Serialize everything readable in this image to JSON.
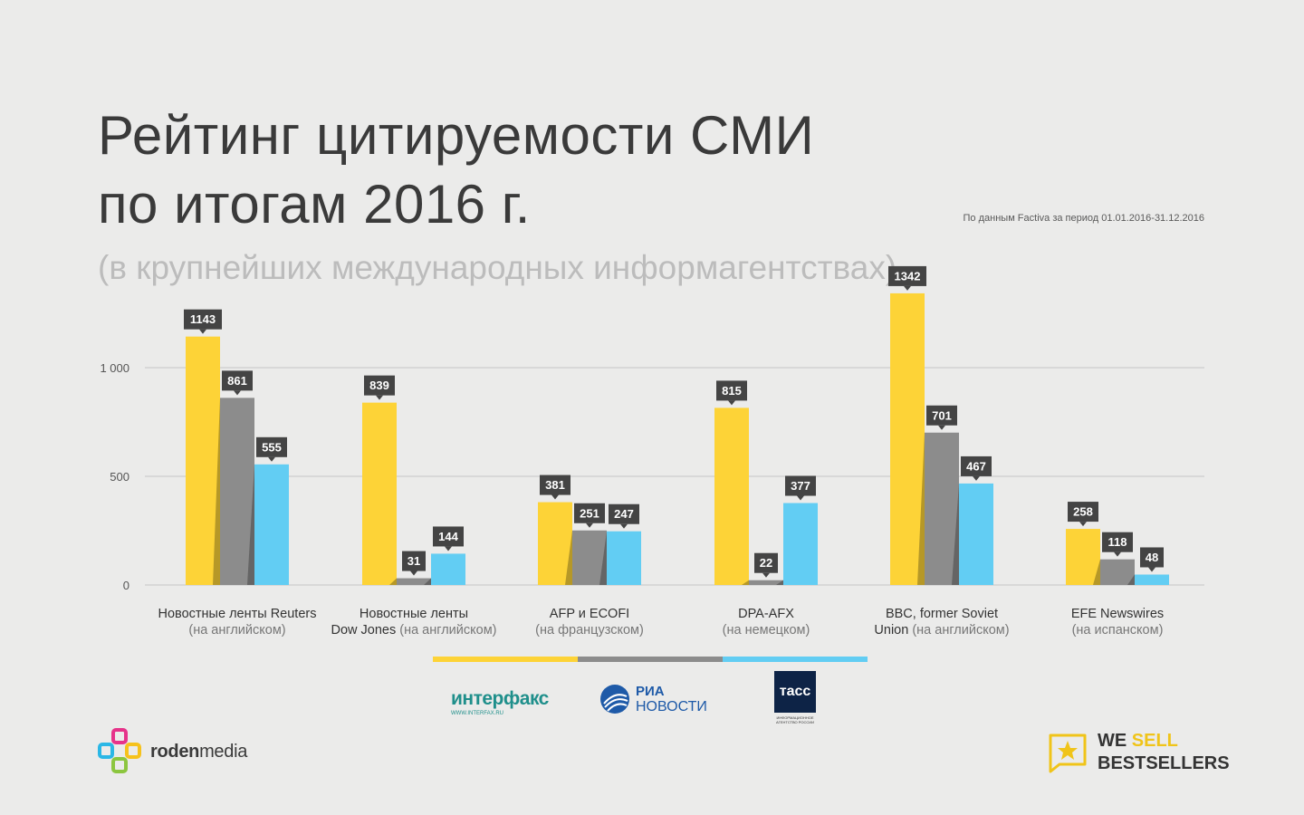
{
  "header": {
    "title_line1": "Рейтинг цитируемости СМИ",
    "title_line2": "по итогам 2016 г.",
    "subtitle": "(в крупнейших международных информагентствах)",
    "source": "По данным Factiva за период 01.01.2016-31.12.2016"
  },
  "chart_data": {
    "type": "bar",
    "categories": [
      {
        "line1": "Новостные ленты Reuters",
        "line2": "(на английском)"
      },
      {
        "line1": "Новостные ленты",
        "line2a": "Dow Jones",
        "line2b": " (на английском)"
      },
      {
        "line1": "AFP и ECOFI",
        "line2": "(на французском)"
      },
      {
        "line1": "DPA-AFX",
        "line2": "(на немецком)"
      },
      {
        "line1": "BBC, former Soviet",
        "line2a": "Union",
        "line2b": " (на английском)"
      },
      {
        "line1": "EFE Newswires",
        "line2": "(на испанском)"
      }
    ],
    "series": [
      {
        "values": [
          1143,
          839,
          381,
          815,
          1342,
          258
        ],
        "color": "#fdd337"
      },
      {
        "values": [
          861,
          31,
          251,
          22,
          701,
          118
        ],
        "color": "#8c8c8c"
      },
      {
        "values": [
          555,
          144,
          247,
          377,
          467,
          48
        ],
        "color": "#62cdf3"
      }
    ],
    "yticks": [
      0,
      500,
      1000
    ],
    "ytick_labels": [
      "0",
      "500",
      "1 000"
    ],
    "ylim": [
      0,
      1342
    ],
    "grid": true
  },
  "legend": {
    "colors": [
      "#fdd337",
      "#8c8c8c",
      "#62cdf3"
    ]
  },
  "partners": {
    "interfax": {
      "word": "интерфакс",
      "url": "WWW.INTERFAX.RU"
    },
    "ria": {
      "line1": "РИА",
      "line2": "НОВОСТИ"
    },
    "tass": {
      "word": "тасс",
      "caption_line1": "ИНФОРМАЦИОННОЕ",
      "caption_line2": "АГЕНТСТВО РОССИИ"
    }
  },
  "branding": {
    "left_bold": "roden",
    "left_rest": "media",
    "right_line1_a": "WE ",
    "right_line1_b": "SELL",
    "right_line2": "BESTSELLERS"
  }
}
